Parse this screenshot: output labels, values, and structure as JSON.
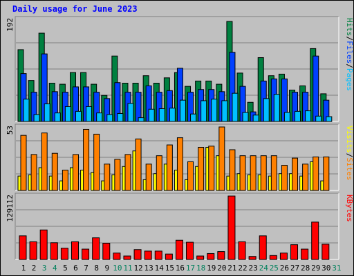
{
  "chart_data": {
    "type": "bar",
    "title": "Daily usage for June 2023",
    "categories": [
      "1",
      "2",
      "3",
      "4",
      "5",
      "6",
      "7",
      "8",
      "9",
      "10",
      "11",
      "12",
      "13",
      "14",
      "15",
      "16",
      "17",
      "18",
      "19",
      "20",
      "21",
      "22",
      "23",
      "24",
      "25",
      "26",
      "27",
      "28",
      "29",
      "30",
      "31"
    ],
    "weekend_days": [
      "3",
      "4",
      "10",
      "11",
      "17",
      "18",
      "24",
      "25",
      "31"
    ],
    "panels": [
      {
        "name": "hits-files-pages",
        "ymax_label": "192",
        "ylim": [
          0,
          192
        ],
        "legend": [
          "Pages",
          "/",
          "Files",
          "/",
          "Hits"
        ],
        "series": [
          {
            "name": "Hits",
            "values": [
              135,
              77,
              166,
              72,
              70,
              92,
              92,
              70,
              49,
              123,
              72,
              72,
              86,
              72,
              82,
              92,
              66,
              76,
              76,
              70,
              188,
              91,
              36,
              120,
              86,
              89,
              59,
              67,
              137,
              52,
              0
            ]
          },
          {
            "name": "Files",
            "values": [
              90,
              55,
              127,
              56,
              55,
              65,
              65,
              55,
              43,
              73,
              55,
              55,
              67,
              55,
              58,
              100,
              55,
              60,
              60,
              56,
              130,
              66,
              18,
              76,
              80,
              80,
              55,
              55,
              123,
              40,
              0
            ]
          },
          {
            "name": "Pages",
            "values": [
              42,
              13,
              33,
              16,
              28,
              19,
              28,
              16,
              13,
              15,
              34,
              7,
              23,
              24,
              25,
              40,
              14,
              39,
              42,
              39,
              53,
              17,
              12,
              43,
              51,
              17,
              19,
              20,
              10,
              9,
              0
            ]
          }
        ]
      },
      {
        "name": "visits-sites",
        "ymax_label": "53",
        "ylim": [
          0,
          53
        ],
        "legend": [
          "Sites",
          "/",
          "Visits"
        ],
        "series": [
          {
            "name": "Visits",
            "values": [
              46,
              30,
              48,
              31,
              17,
              30,
              51,
              47,
              22,
              26,
              30,
              43,
              22,
              29,
              38,
              44,
              24,
              36,
              37,
              53,
              34,
              29,
              29,
              29,
              29,
              21,
              27,
              22,
              28,
              28,
              0
            ]
          },
          {
            "name": "Sites",
            "values": [
              12,
              13,
              19,
              12,
              8,
              19,
              17,
              15,
              8,
              13,
              20,
              33,
              9,
              14,
              22,
              17,
              9,
              20,
              36,
              29,
              12,
              14,
              13,
              13,
              12,
              14,
              14,
              12,
              24,
              8,
              0
            ]
          }
        ]
      },
      {
        "name": "kbytes",
        "ymax_label": "129112",
        "ylim": [
          0,
          129112
        ],
        "legend": [
          "KBytes"
        ],
        "series": [
          {
            "name": "KBytes",
            "values": [
              48000,
              36000,
              60000,
              34000,
              23000,
              36000,
              21000,
              44000,
              33000,
              13000,
              7000,
              20000,
              17000,
              17000,
              11000,
              39000,
              35000,
              7000,
              12000,
              16000,
              129000,
              36000,
              6000,
              48000,
              8000,
              13000,
              30000,
              21000,
              76000,
              31000,
              0
            ]
          }
        ]
      }
    ],
    "colors": {
      "hits": "#008040",
      "files": "#0040ff",
      "pages": "#00c0ff",
      "visits": "#ff8000",
      "sites": "#ffff00",
      "kbytes": "#ff0000",
      "weekday_label": "#000000",
      "weekend_label": "#00805c"
    }
  }
}
